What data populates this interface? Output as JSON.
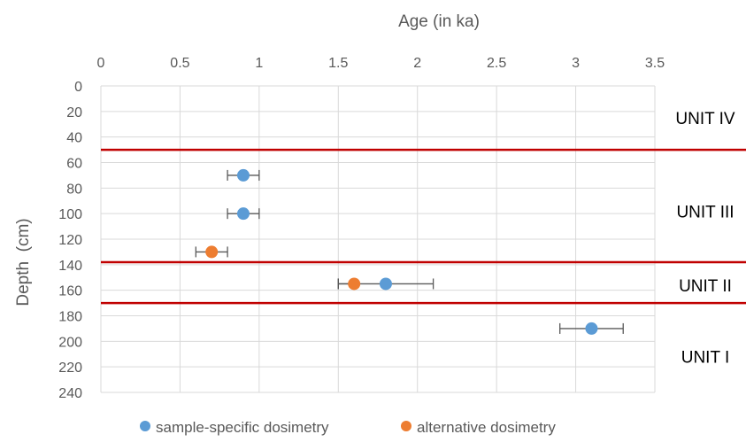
{
  "chart_data": {
    "type": "scatter",
    "xlabel": "Age (in ka)",
    "ylabel": "Depth  (cm)",
    "xlim": [
      0,
      3.5
    ],
    "ylim": [
      0,
      240
    ],
    "x_axis_position": "top",
    "y_axis_inverted": true,
    "x_ticks": [
      "0",
      "0.5",
      "1",
      "1.5",
      "2",
      "2.5",
      "3",
      "3.5"
    ],
    "y_ticks": [
      "0",
      "20",
      "40",
      "60",
      "80",
      "100",
      "120",
      "140",
      "160",
      "180",
      "200",
      "220",
      "240"
    ],
    "grid": true,
    "legend_position": "bottom",
    "series": [
      {
        "name": "sample-specific dosimetry",
        "color": "#5b9bd5",
        "points": [
          {
            "x": 0.9,
            "y": 70,
            "xerr_low": 0.8,
            "xerr_high": 1.0
          },
          {
            "x": 0.9,
            "y": 100,
            "xerr_low": 0.8,
            "xerr_high": 1.0
          },
          {
            "x": 1.8,
            "y": 155,
            "xerr_low": 1.5,
            "xerr_high": 2.1
          },
          {
            "x": 3.1,
            "y": 190,
            "xerr_low": 2.9,
            "xerr_high": 3.3
          }
        ]
      },
      {
        "name": "alternative dosimetry",
        "color": "#ed7d31",
        "points": [
          {
            "x": 0.7,
            "y": 130,
            "xerr_low": 0.6,
            "xerr_high": 0.8
          },
          {
            "x": 1.6,
            "y": 155,
            "xerr_low": 1.5,
            "xerr_high": 1.6
          }
        ]
      }
    ],
    "boundaries": {
      "color": "#c00000",
      "depths": [
        50,
        138,
        170
      ]
    },
    "units": [
      {
        "label": "UNIT IV",
        "depth": 25
      },
      {
        "label": "UNIT III",
        "depth": 98
      },
      {
        "label": "UNIT II",
        "depth": 156
      },
      {
        "label": "UNIT I",
        "depth": 212
      }
    ]
  }
}
